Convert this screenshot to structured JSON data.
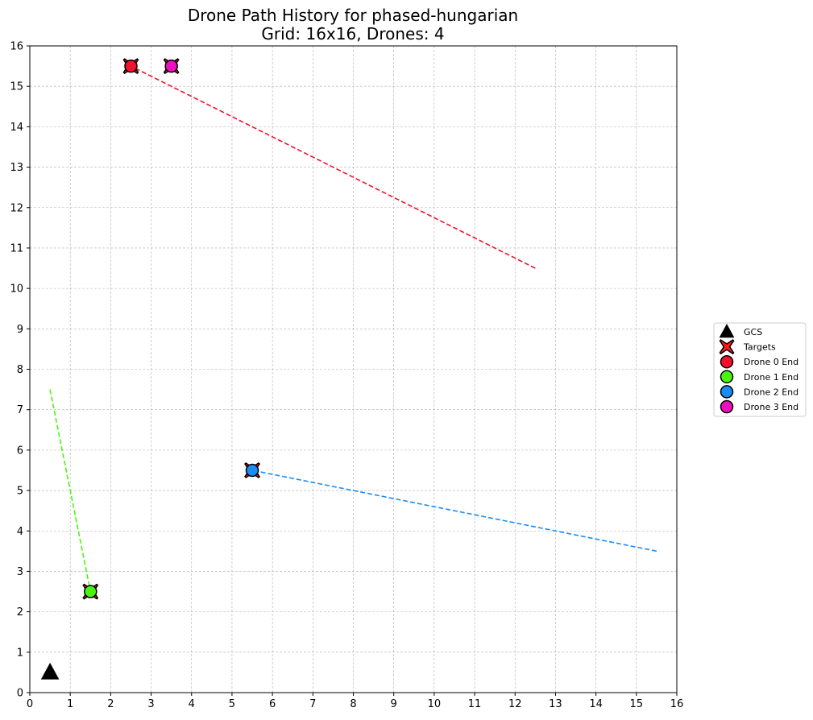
{
  "chart_data": {
    "type": "scatter",
    "title": [
      "Drone Path History for phased-hungarian",
      "Grid: 16x16, Drones: 4"
    ],
    "xlim": [
      0,
      16
    ],
    "ylim": [
      0,
      16
    ],
    "x_ticks": [
      0,
      1,
      2,
      3,
      4,
      5,
      6,
      7,
      8,
      9,
      10,
      11,
      12,
      13,
      14,
      15,
      16
    ],
    "y_ticks": [
      0,
      1,
      2,
      3,
      4,
      5,
      6,
      7,
      8,
      9,
      10,
      11,
      12,
      13,
      14,
      15,
      16
    ],
    "grid": true,
    "legend_position": "outside-right",
    "gcs": {
      "name": "GCS",
      "x": 0.5,
      "y": 0.5,
      "color": "#000000"
    },
    "targets": {
      "name": "Targets",
      "color": "#ff1a1a",
      "points": [
        [
          2.5,
          15.5
        ],
        [
          1.5,
          2.5
        ],
        [
          5.5,
          5.5
        ],
        [
          3.5,
          15.5
        ]
      ]
    },
    "series": [
      {
        "name": "Drone 0 End",
        "color": "#f5102e",
        "path": [
          [
            12.5,
            10.5
          ],
          [
            2.5,
            15.5
          ]
        ],
        "end": [
          2.5,
          15.5
        ]
      },
      {
        "name": "Drone 1 End",
        "color": "#4cf50d",
        "path": [
          [
            0.5,
            7.5
          ],
          [
            1.5,
            2.5
          ]
        ],
        "end": [
          1.5,
          2.5
        ]
      },
      {
        "name": "Drone 2 End",
        "color": "#1a8cf5",
        "path": [
          [
            15.5,
            3.5
          ],
          [
            5.5,
            5.5
          ]
        ],
        "end": [
          5.5,
          5.5
        ]
      },
      {
        "name": "Drone 3 End",
        "color": "#ee10c0",
        "path": [],
        "end": [
          3.5,
          15.5
        ]
      }
    ]
  }
}
